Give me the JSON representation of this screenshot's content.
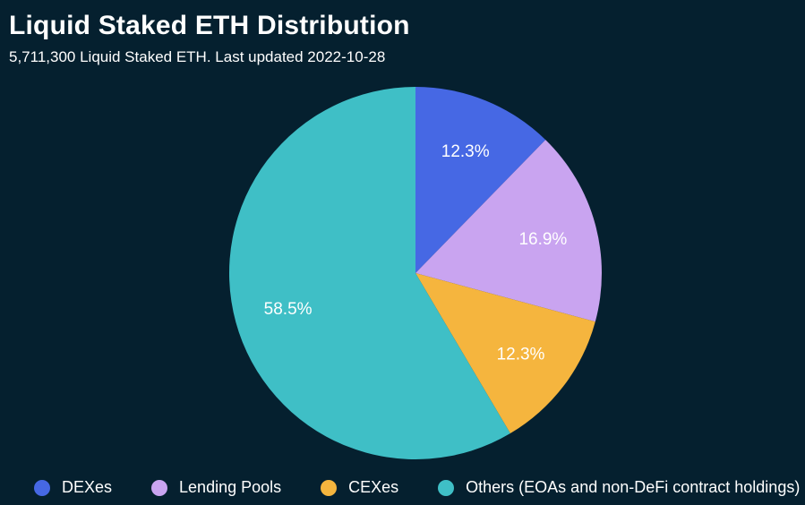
{
  "theme": {
    "background": "#05202f",
    "text_color": "#ffffff"
  },
  "header": {
    "title": "Liquid Staked ETH Distribution",
    "subtitle": "5,711,300 Liquid Staked ETH. Last updated 2022-10-28"
  },
  "chart_data": {
    "type": "pie",
    "title": "Liquid Staked ETH Distribution",
    "subtitle": "5,711,300 Liquid Staked ETH. Last updated 2022-10-28",
    "total_liquid_staked_eth": "5,711,300",
    "last_updated": "2022-10-28",
    "start_angle_deg": 0,
    "direction": "clockwise",
    "legend_position": "bottom",
    "slice_label_format": "percent",
    "slices": [
      {
        "label": "DEXes",
        "value_pct": 12.3,
        "display": "12.3%",
        "color": "#4668e4"
      },
      {
        "label": "Lending Pools",
        "value_pct": 16.9,
        "display": "16.9%",
        "color": "#c9a4f0"
      },
      {
        "label": "CEXes",
        "value_pct": 12.3,
        "display": "12.3%",
        "color": "#f5b53e"
      },
      {
        "label": "Others (EOAs and non-DeFi contract holdings)",
        "value_pct": 58.5,
        "display": "58.5%",
        "color": "#3fbfc6"
      }
    ]
  }
}
